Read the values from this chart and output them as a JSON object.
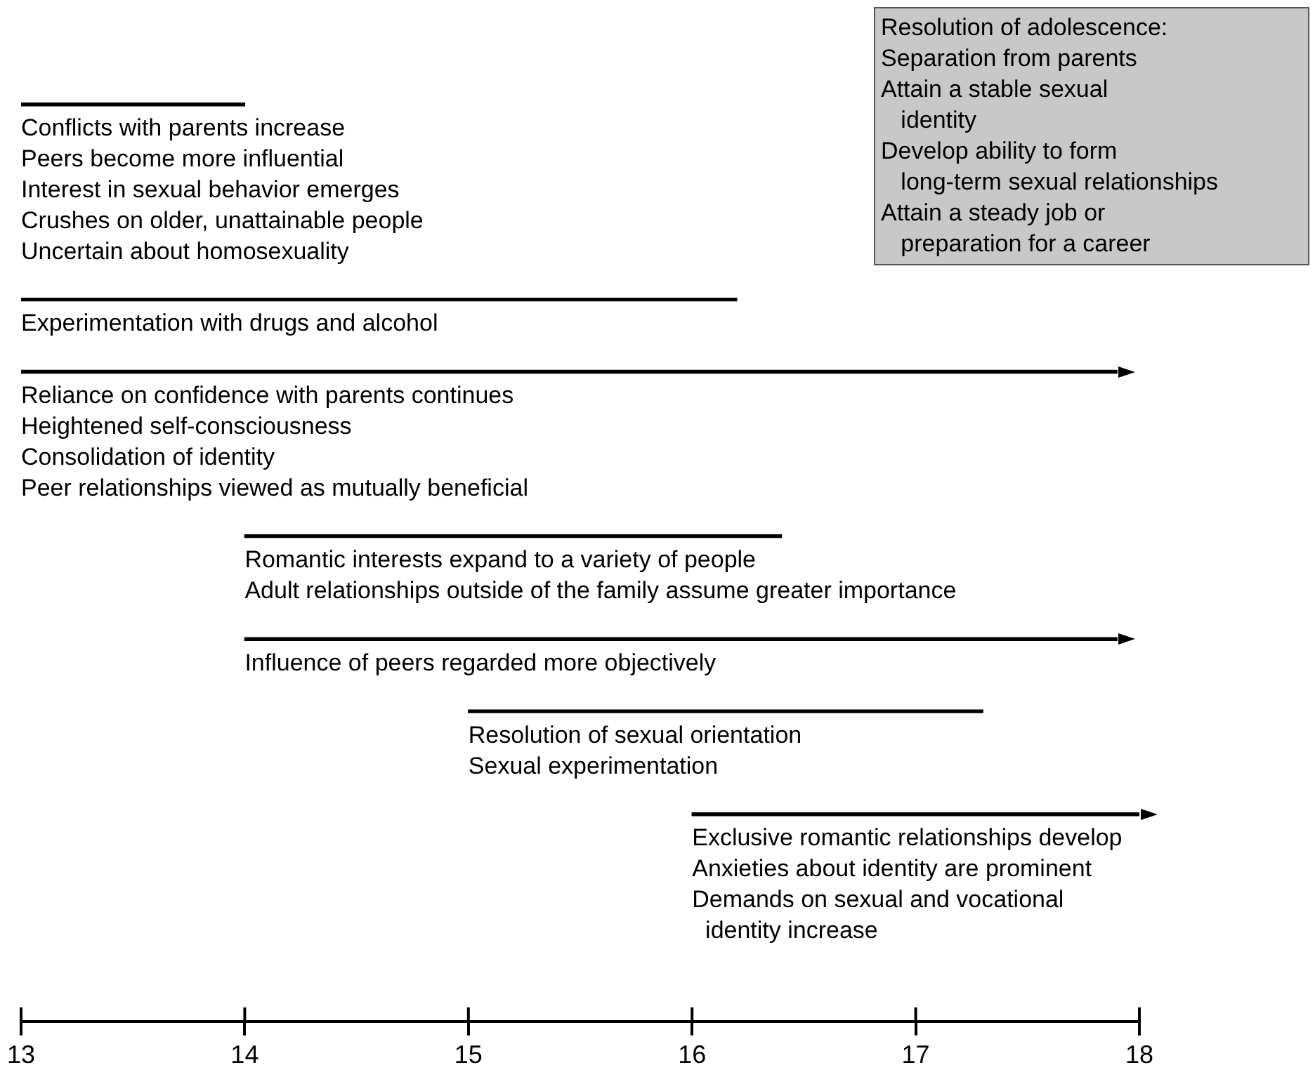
{
  "chart_data": {
    "type": "bar",
    "orientation": "horizontal",
    "color": "#000000",
    "categories": [
      null,
      null,
      null,
      null,
      null,
      null,
      null
    ],
    "base": [
      13,
      13,
      13,
      14,
      14,
      15,
      16
    ],
    "values": [
      1,
      3.2,
      4.9,
      2.4,
      3.9,
      2.3,
      2.0
    ],
    "xlim": [
      13,
      18
    ],
    "xticks": [
      13,
      14,
      15,
      16,
      17,
      18
    ],
    "grid": false,
    "annotations": [
      "Conflicts with parents increase\nPeers become more influential\nInterest in sexual behavior emerges\nCrushes on older, unattainable people\nUncertain about homosexuality",
      "Experimentation with drugs and alcohol",
      "Reliance on confidence with parents continues\nHeightened self-consciousness\nConsolidation of identity\nPeer relationships viewed as mutually beneficial",
      "Romantic interests expand to a variety of people\nAdult relationships outside of the family assume greater importance",
      "Influence of peers regarded more objectively",
      "Resolution of sexual orientation\nSexual experimentation",
      "Exclusive romantic relationships develop\nAnxieties about identity are prominent\nDemands on sexual and vocational\n  identity increase",
      "Resolution of adolescence:\nSeparation from parents\nAttain a stable sexual\n   identity\nDevelop ability to form\n   long-term sexual relationships\nAttain a steady job or\n   preparation for a career"
    ]
  }
}
